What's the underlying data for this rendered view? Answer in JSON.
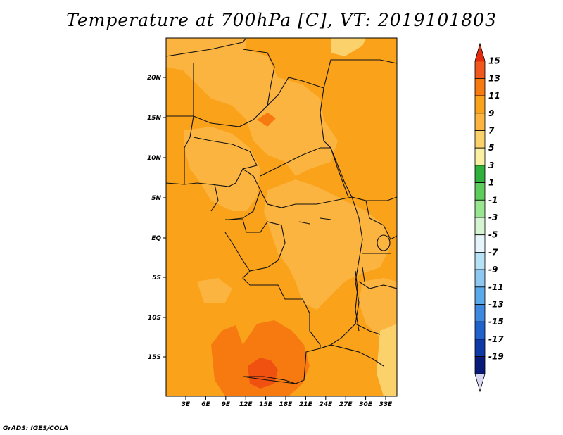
{
  "title": "Temperature at 700hPa [C], VT: 2019101803",
  "credit": "GrADS: IGES/COLA",
  "map": {
    "variable": "Temperature at 700hPa",
    "units": "C",
    "valid_time": "2019101803",
    "lat_ticks": [
      "20N",
      "15N",
      "10N",
      "5N",
      "EQ",
      "5S",
      "10S",
      "15S"
    ],
    "lon_ticks": [
      "3E",
      "6E",
      "9E",
      "12E",
      "15E",
      "18E",
      "21E",
      "24E",
      "27E",
      "30E",
      "33E"
    ],
    "field_colors": {
      "warm_7_9": "#fbb440",
      "warm_9_11": "#f9a21a",
      "warm_11_13": "#f77a10",
      "warm_13_15": "#f05010",
      "warm_5_7": "#f7d870"
    }
  },
  "colorbar": {
    "labels": [
      "15",
      "13",
      "11",
      "9",
      "7",
      "5",
      "3",
      "1",
      "-1",
      "-3",
      "-5",
      "-7",
      "-9",
      "-11",
      "-13",
      "-15",
      "-17",
      "-19"
    ],
    "colors": [
      "#e62a0e",
      "#f2581b",
      "#f77a10",
      "#f9a21a",
      "#fbb440",
      "#fad16a",
      "#fbf0a2",
      "#2fb13b",
      "#5ccd5a",
      "#98e690",
      "#d4f4d2",
      "#e6f5fc",
      "#b7e1f7",
      "#8cc8f2",
      "#5aa9ea",
      "#3d88e0",
      "#1f62cc",
      "#0e3aa8",
      "#0a1a78",
      "#d8d8f3"
    ]
  }
}
